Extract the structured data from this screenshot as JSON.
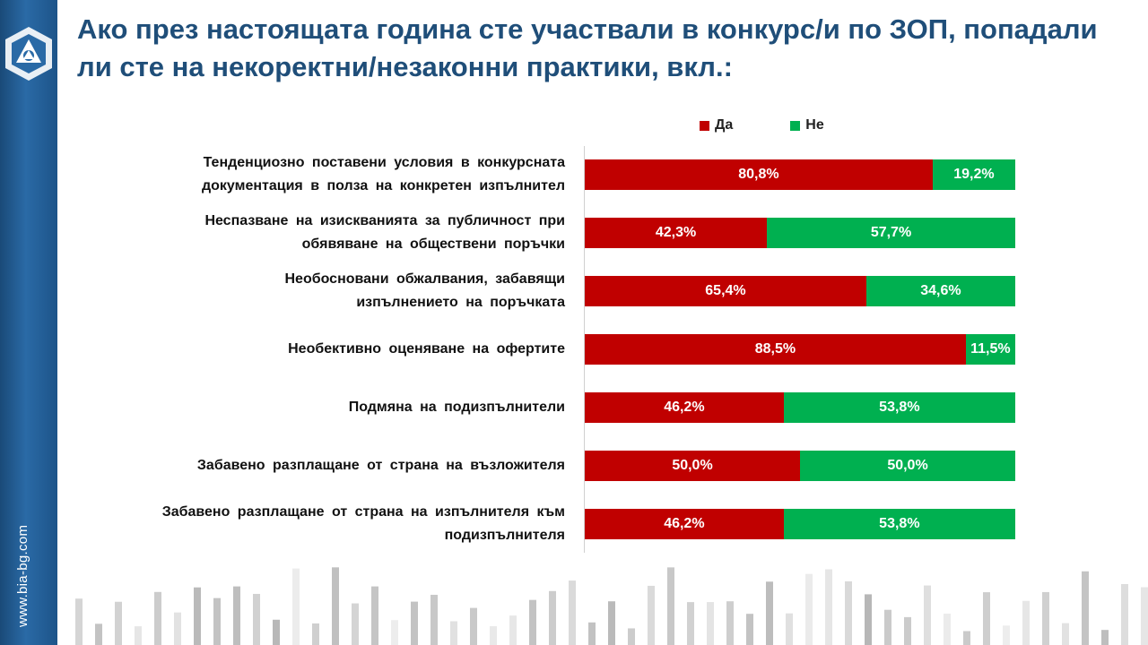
{
  "slide": {
    "title": "Ако през настоящата година сте участвали в конкурс/и по ЗОП, попадали ли сте на некоректни/незаконни практики, вкл.:",
    "site_url": "www.bia-bg.com"
  },
  "colors": {
    "yes": "#c00000",
    "no": "#00b050",
    "title": "#1f4e79"
  },
  "chart_data": {
    "type": "bar",
    "orientation": "horizontal",
    "stacked": true,
    "percent_stacked": true,
    "legend_position": "top",
    "legend": [
      "Да",
      "Не"
    ],
    "categories": [
      [
        "Тенденциозно поставени условия в конкурсната",
        "документация в полза на конкретен изпълнител"
      ],
      [
        "Неспазване на изискванията за публичност при",
        "обявяване на обществени поръчки"
      ],
      [
        "Необосновани обжалвания, забавящи",
        "изпълнението на поръчката"
      ],
      [
        "Необективно оценяване на офертите"
      ],
      [
        "Подмяна на подизпълнители"
      ],
      [
        "Забавено разплащане от страна на възложителя"
      ],
      [
        "Забавено разплащане от страна на изпълнителя към",
        "подизпълнителя"
      ]
    ],
    "series": [
      {
        "name": "Да",
        "values": [
          80.8,
          42.3,
          65.4,
          88.5,
          46.2,
          50.0,
          46.2
        ],
        "labels": [
          "80,8%",
          "42,3%",
          "65,4%",
          "88,5%",
          "46,2%",
          "50,0%",
          "46,2%"
        ]
      },
      {
        "name": "Не",
        "values": [
          19.2,
          57.7,
          34.6,
          11.5,
          53.8,
          50.0,
          53.8
        ],
        "labels": [
          "19,2%",
          "57,7%",
          "34,6%",
          "11,5%",
          "53,8%",
          "50,0%",
          "53,8%"
        ]
      }
    ],
    "xlim": [
      0,
      100
    ]
  }
}
